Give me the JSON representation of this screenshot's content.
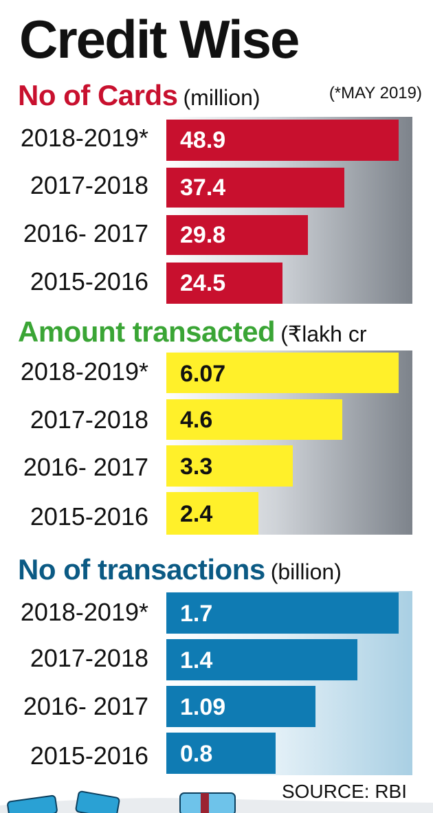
{
  "title": "Credit Wise",
  "note": "(*MAY 2019)",
  "source": "SOURCE: RBI",
  "colors": {
    "cards": "#c8102e",
    "amount_title": "#3aa535",
    "amount_bar": "#fff02a",
    "transactions_title": "#0b5a84",
    "transactions_bar": "#0f7bb3"
  },
  "chart_data": [
    {
      "type": "bar",
      "orientation": "horizontal",
      "title": "No of Cards",
      "unit": "(million)",
      "categories": [
        "2018-2019*",
        "2017-2018",
        "2016- 2017",
        "2015-2016"
      ],
      "values": [
        48.9,
        37.4,
        29.8,
        24.5
      ],
      "value_labels": [
        "48.9",
        "37.4",
        "29.8",
        "24.5"
      ],
      "xlim": [
        0,
        48.9
      ]
    },
    {
      "type": "bar",
      "orientation": "horizontal",
      "title": "Amount transacted",
      "unit": "(₹lakh cr",
      "categories": [
        "2018-2019*",
        "2017-2018",
        "2016- 2017",
        "2015-2016"
      ],
      "values": [
        6.07,
        4.6,
        3.3,
        2.4
      ],
      "value_labels": [
        "6.07",
        "4.6",
        "3.3",
        "2.4"
      ],
      "xlim": [
        0,
        6.07
      ]
    },
    {
      "type": "bar",
      "orientation": "horizontal",
      "title": "No of transactions",
      "unit": "(billion)",
      "categories": [
        "2018-2019*",
        "2017-2018",
        "2016- 2017",
        "2015-2016"
      ],
      "values": [
        1.7,
        1.4,
        1.09,
        0.8
      ],
      "value_labels": [
        "1.7",
        "1.4",
        "1.09",
        "0.8"
      ],
      "xlim": [
        0,
        1.7
      ]
    }
  ]
}
